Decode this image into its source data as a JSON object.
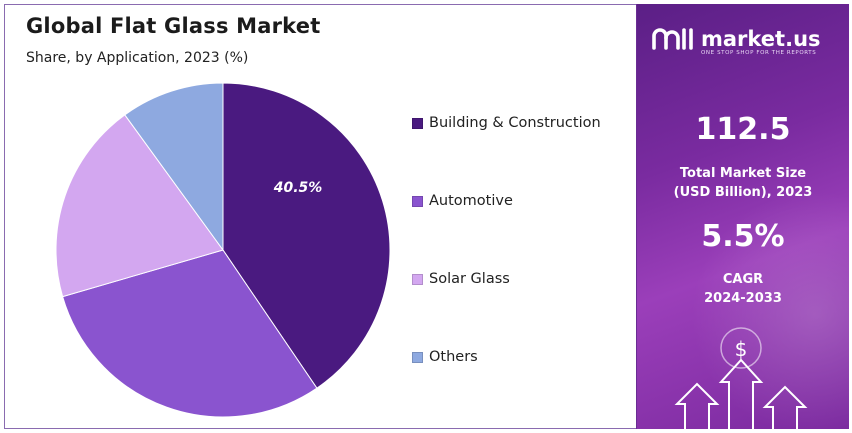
{
  "title": "Global Flat Glass Market",
  "subtitle": "Share, by Application, 2023 (%)",
  "chart_data": {
    "type": "pie",
    "title": "Global Flat Glass Market",
    "subtitle": "Share, by Application, 2023 (%)",
    "categories": [
      "Building & Construction",
      "Automotive",
      "Solar Glass",
      "Others"
    ],
    "values": [
      40.5,
      30.0,
      19.5,
      10.0
    ],
    "colors": [
      "#4a1a80",
      "#8a54cf",
      "#d3a7f0",
      "#8ea9e0"
    ],
    "data_labels": [
      "40.5%",
      "",
      "",
      ""
    ],
    "legend": "right"
  },
  "legend": [
    {
      "label": "Building & Construction",
      "color": "#4a1a80"
    },
    {
      "label": "Automotive",
      "color": "#8a54cf"
    },
    {
      "label": "Solar Glass",
      "color": "#d3a7f0"
    },
    {
      "label": "Others",
      "color": "#8ea9e0"
    }
  ],
  "side_panel": {
    "brand": "market.us",
    "tagline": "ONE STOP SHOP FOR THE REPORTS",
    "market_size": "112.5",
    "market_size_label_1": "Total Market Size",
    "market_size_label_2": "(USD Billion), 2023",
    "cagr": "5.5%",
    "cagr_label_1": "CAGR",
    "cagr_label_2": "2024-2033",
    "dollar_symbol": "$",
    "icons": [
      "market-us-logo-icon",
      "dollar-coin-icon",
      "up-arrow-icon"
    ]
  }
}
